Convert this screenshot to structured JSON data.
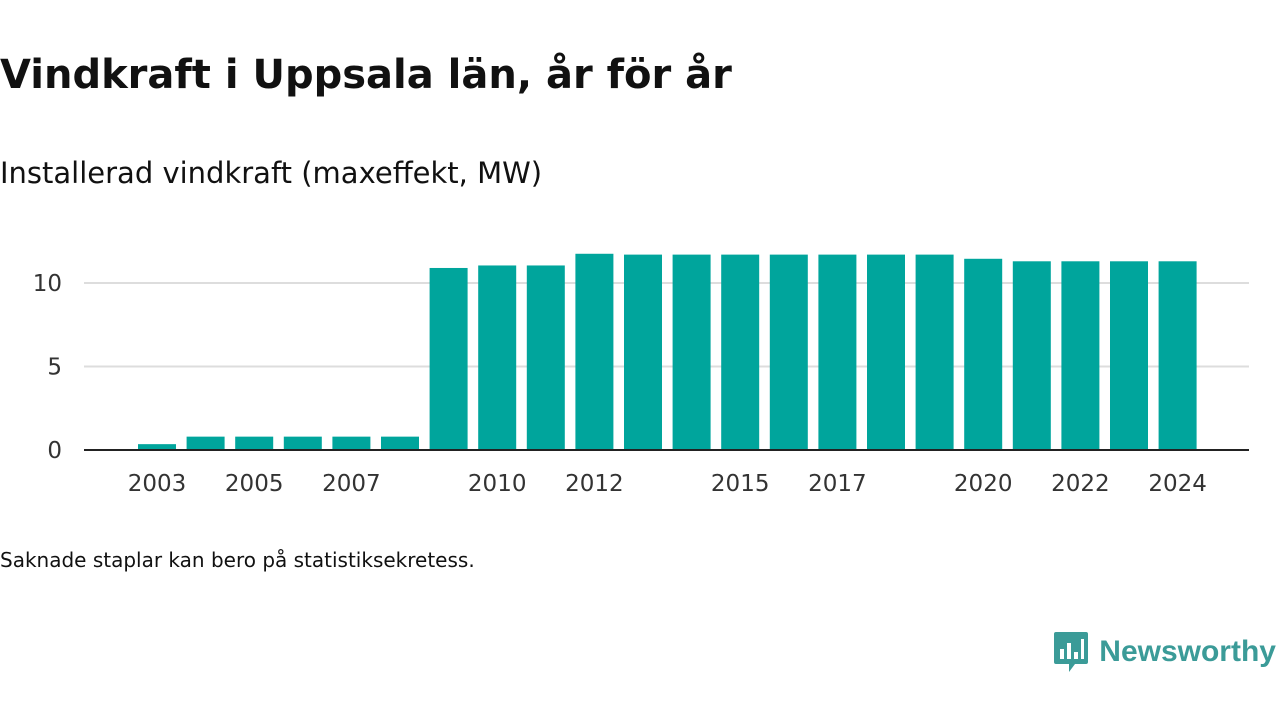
{
  "title": "Vindkraft i Uppsala län, år för år",
  "subtitle": "Installerad vindkraft (maxeffekt, MW)",
  "footnote": "Saknade staplar kan bero på statistiksekretess.",
  "brand": {
    "name": "Newsworthy",
    "icon": "newsworthy-logo-icon",
    "color": "#3b9b98"
  },
  "chart_data": {
    "type": "bar",
    "categories": [
      "2003",
      "2004",
      "2005",
      "2006",
      "2007",
      "2008",
      "2009",
      "2010",
      "2011",
      "2012",
      "2013",
      "2014",
      "2015",
      "2016",
      "2017",
      "2018",
      "2019",
      "2020",
      "2021",
      "2022",
      "2023",
      "2024"
    ],
    "values": [
      0.35,
      0.8,
      0.8,
      0.8,
      0.8,
      0.8,
      10.9,
      11.05,
      11.05,
      11.75,
      11.7,
      11.7,
      11.7,
      11.7,
      11.7,
      11.7,
      11.7,
      11.45,
      11.3,
      11.3,
      11.3,
      11.3
    ],
    "x_tick_labels": [
      "2003",
      "2005",
      "2007",
      "2010",
      "2012",
      "2015",
      "2017",
      "2020",
      "2022",
      "2024"
    ],
    "y_ticks": [
      0,
      5,
      10
    ],
    "ylim": [
      0,
      12.5
    ],
    "bar_color": "#00a59c",
    "grid": true,
    "xlabel": "",
    "ylabel": ""
  }
}
